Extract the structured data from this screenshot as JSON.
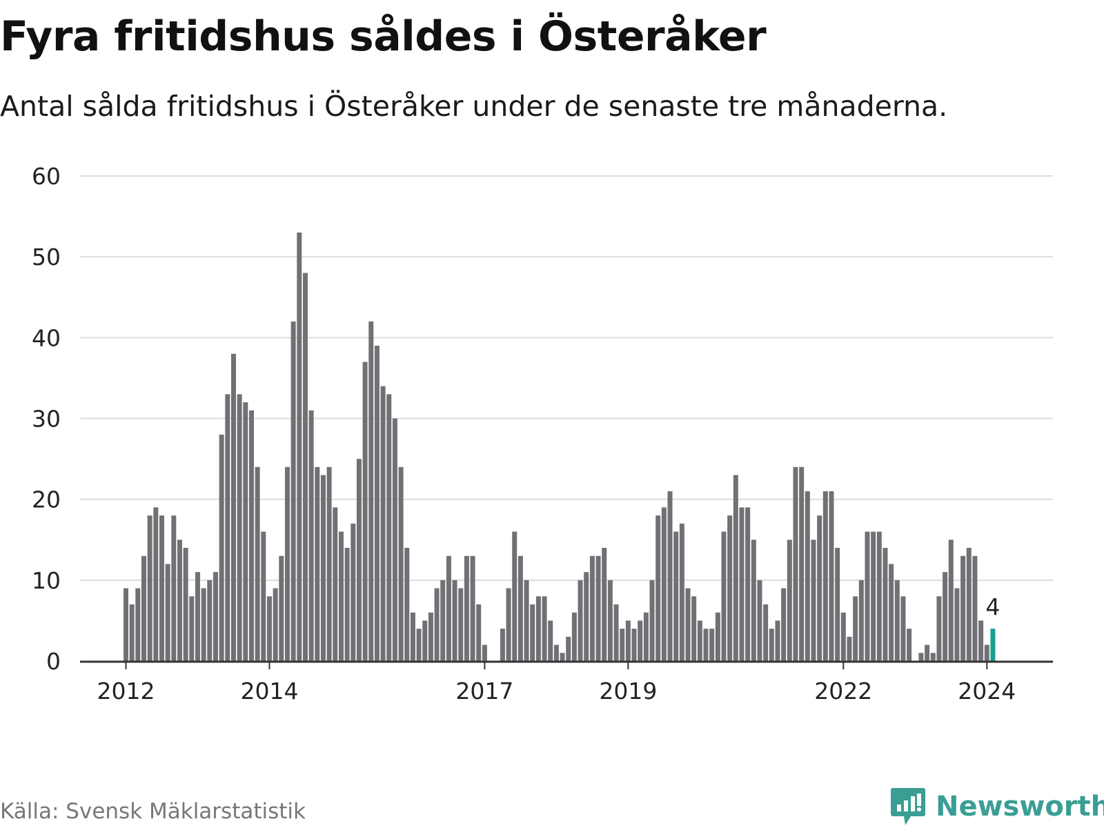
{
  "title": "Fyra fritidshus såldes i Österåker",
  "subtitle": "Antal sålda fritidshus i Österåker under de senaste tre månaderna.",
  "source": "Källa: Svensk Mäklarstatistik",
  "brand": "Newsworthy",
  "colors": {
    "bar": "#707075",
    "highlight": "#1a9e96",
    "grid": "#dcdcdc",
    "axis": "#333333",
    "brand": "#3a9e95"
  },
  "chart_data": {
    "type": "bar",
    "title": "Fyra fritidshus såldes i Österåker",
    "xlabel": "",
    "ylabel": "",
    "ylim": [
      0,
      60
    ],
    "yticks": [
      0,
      10,
      20,
      30,
      40,
      50,
      60
    ],
    "series": [
      {
        "name": "Antal sålda fritidshus (senaste tre månaderna)",
        "start": "2012-01",
        "values": [
          9,
          7,
          9,
          13,
          18,
          19,
          18,
          12,
          18,
          15,
          14,
          8,
          11,
          9,
          10,
          11,
          28,
          33,
          38,
          33,
          32,
          31,
          24,
          16,
          8,
          9,
          13,
          24,
          42,
          53,
          48,
          31,
          24,
          23,
          24,
          19,
          16,
          14,
          17,
          25,
          37,
          42,
          39,
          34,
          33,
          30,
          24,
          14,
          6,
          4,
          5,
          6,
          9,
          10,
          13,
          10,
          9,
          13,
          13,
          7,
          2,
          0,
          0,
          4,
          9,
          16,
          13,
          10,
          7,
          8,
          8,
          5,
          2,
          1,
          3,
          6,
          10,
          11,
          13,
          13,
          14,
          10,
          7,
          4,
          5,
          4,
          5,
          6,
          10,
          18,
          19,
          21,
          16,
          17,
          9,
          8,
          5,
          4,
          4,
          6,
          16,
          18,
          23,
          19,
          19,
          15,
          10,
          7,
          4,
          5,
          9,
          15,
          24,
          24,
          21,
          15,
          18,
          21,
          21,
          14,
          6,
          3,
          8,
          10,
          16,
          16,
          16,
          14,
          12,
          10,
          8,
          4,
          0,
          1,
          2,
          1,
          8,
          11,
          15,
          9,
          13,
          14,
          13,
          5,
          2,
          4
        ]
      }
    ],
    "x_tick_labels": [
      {
        "label": "2012",
        "index": 0
      },
      {
        "label": "2014",
        "index": 24
      },
      {
        "label": "2017",
        "index": 60
      },
      {
        "label": "2019",
        "index": 84
      },
      {
        "label": "2022",
        "index": 120
      },
      {
        "label": "2024",
        "index": 144
      }
    ],
    "highlight": {
      "index": 145,
      "label": "4"
    }
  }
}
